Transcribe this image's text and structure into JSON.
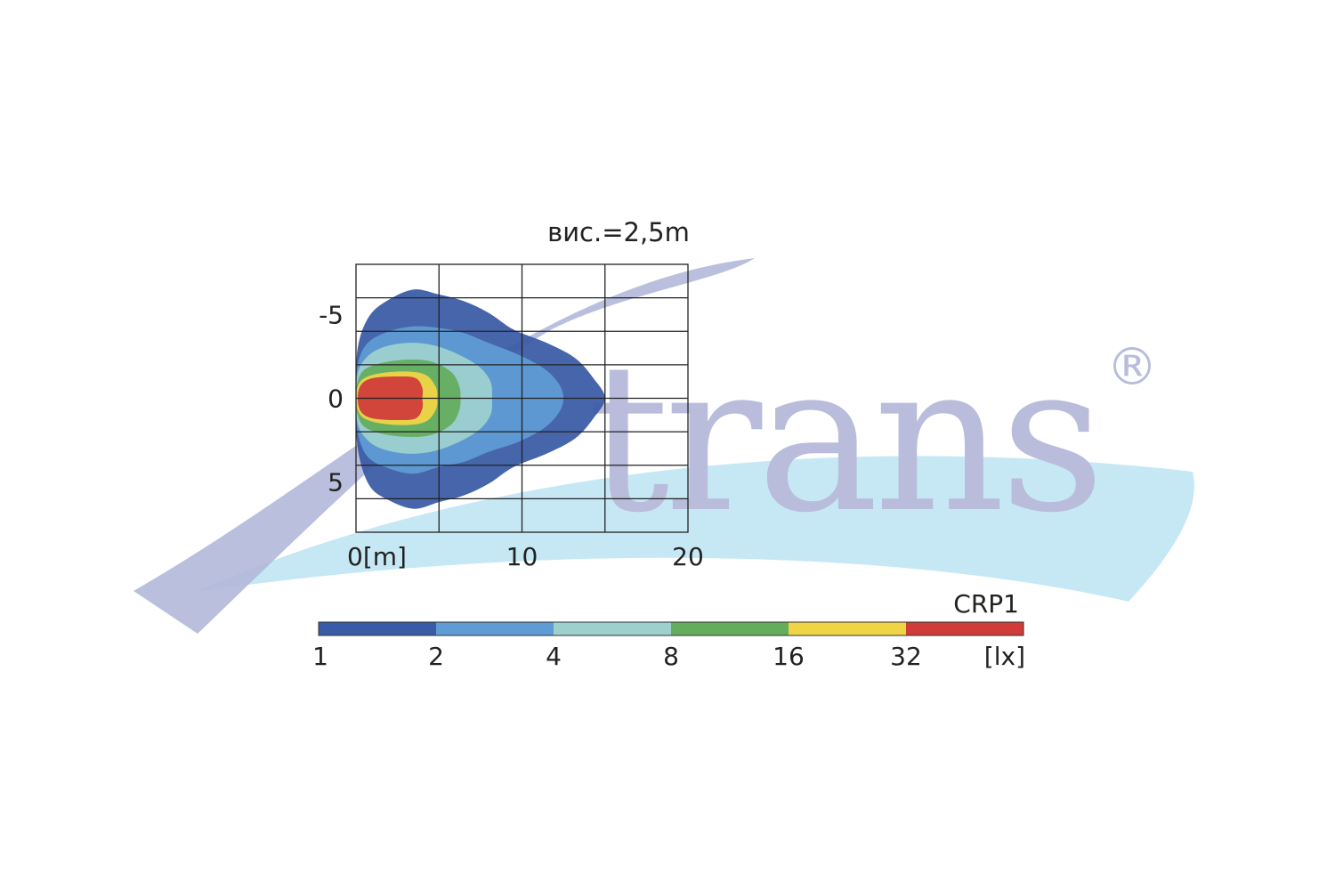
{
  "watermark": {
    "text": "trans",
    "mark": "®",
    "swoosh_colors": [
      "#b3b8da",
      "#c6e8f4"
    ],
    "text_color": "#b9bcdb"
  },
  "chart_data": {
    "type": "heatmap",
    "title": "вис.=2,5m",
    "series_label": "CRP1",
    "x_axis": {
      "range": [
        0,
        20
      ],
      "ticks": [
        0,
        10,
        20
      ],
      "tick_labels": [
        "0[m]",
        "10",
        "20"
      ],
      "minor_step": 5
    },
    "y_axis": {
      "range": [
        -8,
        8
      ],
      "ticks": [
        -5,
        0,
        5
      ],
      "tick_labels": [
        "-5",
        "0",
        "5"
      ],
      "minor_step": 2
    },
    "grid": true,
    "colorbar": {
      "unit": "[lx]",
      "levels": [
        1,
        2,
        4,
        8,
        16,
        32
      ],
      "level_labels": [
        "1",
        "2",
        "4",
        "8",
        "16",
        "32"
      ],
      "colors": [
        "#3a5ba6",
        "#5f9bd5",
        "#9ed0ce",
        "#63ad5d",
        "#f0d445",
        "#cf3c3a"
      ]
    },
    "isolux_contours": [
      {
        "level": 1,
        "x_max": 15.0,
        "y_max": 6.6,
        "points": [
          [
            0,
            0
          ],
          [
            0.1,
            -3
          ],
          [
            0.8,
            -4.9
          ],
          [
            2,
            -5.9
          ],
          [
            3.5,
            -6.5
          ],
          [
            5,
            -6.2
          ],
          [
            6.5,
            -5.8
          ],
          [
            8,
            -5.1
          ],
          [
            9.5,
            -4.1
          ],
          [
            11.5,
            -3.3
          ],
          [
            13.2,
            -2.4
          ],
          [
            14.3,
            -1.2
          ],
          [
            15,
            0
          ],
          [
            14.3,
            1.2
          ],
          [
            13.2,
            2.4
          ],
          [
            11.5,
            3.3
          ],
          [
            9.5,
            4.1
          ],
          [
            8,
            5.1
          ],
          [
            6.5,
            5.8
          ],
          [
            5,
            6.2
          ],
          [
            3.5,
            6.6
          ],
          [
            2,
            6.1
          ],
          [
            0.8,
            5.2
          ],
          [
            0.1,
            3
          ]
        ]
      },
      {
        "level": 2,
        "x_max": 12.5,
        "y_max": 4.5,
        "points": [
          [
            0,
            0
          ],
          [
            0.1,
            -2
          ],
          [
            0.7,
            -3.3
          ],
          [
            2,
            -4
          ],
          [
            3.5,
            -4.3
          ],
          [
            5,
            -4.2
          ],
          [
            6.5,
            -3.9
          ],
          [
            8,
            -3.3
          ],
          [
            9.8,
            -2.6
          ],
          [
            11.3,
            -1.8
          ],
          [
            12.2,
            -0.9
          ],
          [
            12.5,
            0
          ],
          [
            12.2,
            0.9
          ],
          [
            11.3,
            1.8
          ],
          [
            9.8,
            2.6
          ],
          [
            8,
            3.2
          ],
          [
            6.5,
            3.8
          ],
          [
            5,
            4.1
          ],
          [
            3.5,
            4.5
          ],
          [
            2,
            4.2
          ],
          [
            0.7,
            3.5
          ],
          [
            0.1,
            2
          ]
        ]
      },
      {
        "level": 4,
        "x_max": 8.2,
        "y_max": 3.3,
        "points": [
          [
            0,
            0
          ],
          [
            0.1,
            -1.5
          ],
          [
            0.6,
            -2.4
          ],
          [
            1.5,
            -3
          ],
          [
            3,
            -3.3
          ],
          [
            4.5,
            -3.2
          ],
          [
            6,
            -2.7
          ],
          [
            7.4,
            -1.9
          ],
          [
            8.1,
            -1
          ],
          [
            8.2,
            0
          ],
          [
            8.1,
            1
          ],
          [
            7.4,
            1.9
          ],
          [
            6,
            2.7
          ],
          [
            4.5,
            3.2
          ],
          [
            3,
            3.3
          ],
          [
            1.5,
            3
          ],
          [
            0.6,
            2.4
          ],
          [
            0.1,
            1.5
          ]
        ]
      },
      {
        "level": 8,
        "x_max": 6.3,
        "y_max": 2.3,
        "points": [
          [
            0,
            0
          ],
          [
            0.1,
            -1
          ],
          [
            0.5,
            -1.7
          ],
          [
            1.5,
            -2.1
          ],
          [
            3,
            -2.3
          ],
          [
            4.5,
            -2.2
          ],
          [
            5.7,
            -1.6
          ],
          [
            6.2,
            -0.8
          ],
          [
            6.3,
            0
          ],
          [
            6.2,
            0.8
          ],
          [
            5.7,
            1.6
          ],
          [
            4.5,
            2.2
          ],
          [
            3,
            2.3
          ],
          [
            1.5,
            2.1
          ],
          [
            0.5,
            1.7
          ],
          [
            0.1,
            1
          ]
        ]
      },
      {
        "level": 16,
        "x_max": 4.9,
        "y_max": 1.6,
        "points": [
          [
            0,
            0
          ],
          [
            0.1,
            -0.7
          ],
          [
            0.5,
            -1.2
          ],
          [
            1.5,
            -1.5
          ],
          [
            3,
            -1.6
          ],
          [
            4.2,
            -1.4
          ],
          [
            4.8,
            -0.7
          ],
          [
            4.9,
            0
          ],
          [
            4.8,
            0.7
          ],
          [
            4.2,
            1.4
          ],
          [
            3,
            1.6
          ],
          [
            1.5,
            1.5
          ],
          [
            0.5,
            1.2
          ],
          [
            0.1,
            0.7
          ]
        ]
      },
      {
        "level": 32,
        "x_max": 4.0,
        "y_max": 1.3,
        "points": [
          [
            0.1,
            0
          ],
          [
            0.3,
            -0.8
          ],
          [
            1,
            -1.2
          ],
          [
            2.5,
            -1.3
          ],
          [
            3.6,
            -1.2
          ],
          [
            4,
            -0.6
          ],
          [
            4,
            0
          ],
          [
            4,
            0.6
          ],
          [
            3.6,
            1.2
          ],
          [
            2.5,
            1.3
          ],
          [
            1,
            1.2
          ],
          [
            0.3,
            0.8
          ]
        ]
      }
    ]
  }
}
